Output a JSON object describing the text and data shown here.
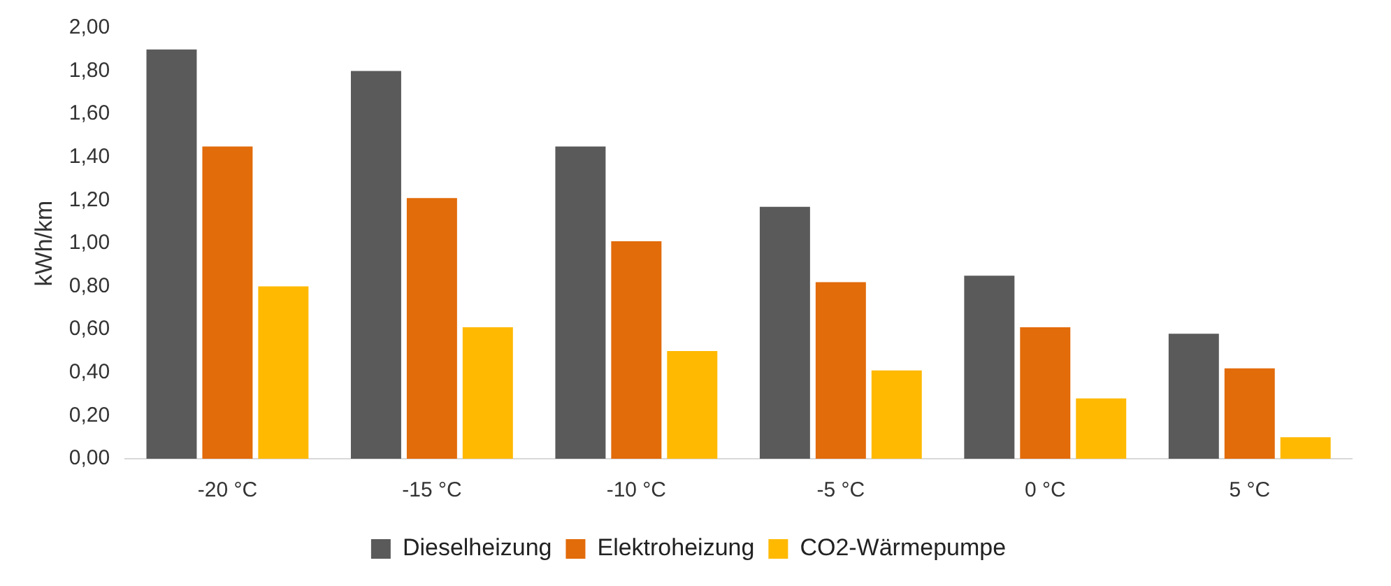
{
  "chart_data": {
    "type": "bar",
    "ylabel": "kWh/km",
    "categories": [
      "-20 °C",
      "-15 °C",
      "-10 °C",
      "-5 °C",
      "0 °C",
      "5 °C"
    ],
    "series": [
      {
        "name": "Dieselheizung",
        "color": "#5a5a5a",
        "values": [
          1.9,
          1.8,
          1.45,
          1.17,
          0.85,
          0.58
        ]
      },
      {
        "name": "Elektroheizung",
        "color": "#e26b0a",
        "values": [
          1.45,
          1.21,
          1.01,
          0.82,
          0.61,
          0.42
        ]
      },
      {
        "name": "CO2-Wärmepumpe",
        "color": "#ffb900",
        "values": [
          0.8,
          0.61,
          0.5,
          0.41,
          0.28,
          0.1
        ]
      }
    ],
    "ylim": [
      0,
      2
    ],
    "yticks": [
      {
        "value": 0,
        "label": "0,00"
      },
      {
        "value": 0.2,
        "label": "0,20"
      },
      {
        "value": 0.4,
        "label": "0,40"
      },
      {
        "value": 0.6,
        "label": "0,60"
      },
      {
        "value": 0.8,
        "label": "0,80"
      },
      {
        "value": 1,
        "label": "1,00"
      },
      {
        "value": 1.2,
        "label": "1,20"
      },
      {
        "value": 1.4,
        "label": "1,40"
      },
      {
        "value": 1.6,
        "label": "1,60"
      },
      {
        "value": 1.8,
        "label": "1,80"
      },
      {
        "value": 2,
        "label": "2,00"
      }
    ],
    "grid": false,
    "legend": "bottom"
  }
}
